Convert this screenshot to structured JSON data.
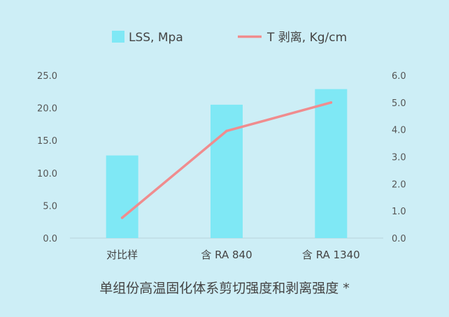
{
  "chart_data": {
    "type": "bar",
    "title": "单组份高温固化体系剪切强度和剥离强度 *",
    "categories": [
      "对比样",
      "含 RA 840",
      "含 RA 1340"
    ],
    "series": [
      {
        "name": "LSS, Mpa",
        "type": "bar",
        "axis": "left",
        "values": [
          12.7,
          20.5,
          22.9
        ]
      },
      {
        "name": "T 剥离, Kg/cm",
        "type": "line",
        "axis": "right",
        "values": [
          0.75,
          3.95,
          5.0
        ]
      }
    ],
    "y_left": {
      "ylim": [
        0,
        25
      ],
      "ticks": [
        "0.0",
        "5.0",
        "10.0",
        "15.0",
        "20.0",
        "25.0"
      ]
    },
    "y_right": {
      "ylim": [
        0,
        6
      ],
      "ticks": [
        "0.0",
        "1.0",
        "2.0",
        "3.0",
        "4.0",
        "5.0",
        "6.0"
      ]
    },
    "legend": "top-center",
    "grid": false,
    "colors": {
      "bar": "#7fe8f5",
      "line": "#f08c8e",
      "background": "#cdeef6"
    }
  }
}
